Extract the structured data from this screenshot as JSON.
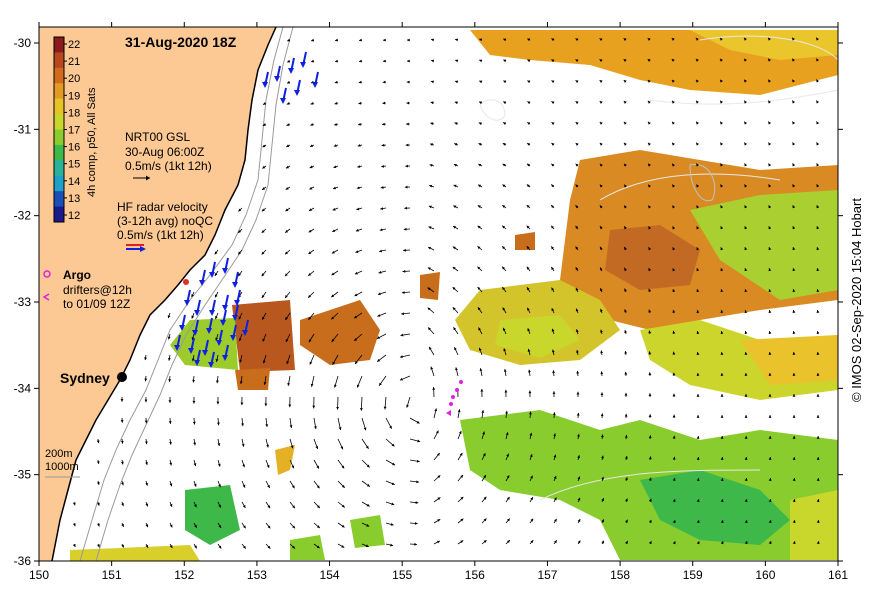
{
  "title": "31-Aug-2020 18Z",
  "colorbar": {
    "ticks": [
      "22",
      "21",
      "20",
      "19",
      "18",
      "17",
      "16",
      "15",
      "14",
      "13",
      "12"
    ],
    "label": "4h comp, p50, All Sats",
    "colors": [
      "#8b1a1a",
      "#b8471e",
      "#d26a1e",
      "#e39a22",
      "#e8c326",
      "#c9d62c",
      "#88cc2d",
      "#3fb84a",
      "#2bb29a",
      "#1ea0c8",
      "#1a4fb8",
      "#1a1a8b"
    ]
  },
  "legend": {
    "gsl": [
      "NRT00 GSL",
      "30-Aug 06:00Z",
      "0.5m/s (1kt 12h)"
    ],
    "hf": [
      "HF radar velocity",
      "(3-12h avg) noQC",
      "0.5m/s (1kt 12h)"
    ],
    "argo": "Argo",
    "drifters": [
      "drifters@12h",
      "to 01/09 12Z"
    ]
  },
  "city": "Sydney",
  "isobaths": [
    "200m",
    "1000m"
  ],
  "axes": {
    "x_ticks": [
      "150",
      "151",
      "152",
      "153",
      "154",
      "155",
      "156",
      "157",
      "158",
      "159",
      "160",
      "161"
    ],
    "y_ticks": [
      "-30",
      "-31",
      "-32",
      "-33",
      "-34",
      "-35",
      "-36"
    ]
  },
  "credit": "© IMOS 02-Sep-2020 15:04 Hobart",
  "colors": {
    "land": "#fcc894",
    "hf_arrow": "#1020e0",
    "drifter": "#e020e0",
    "coast": "#000000"
  }
}
